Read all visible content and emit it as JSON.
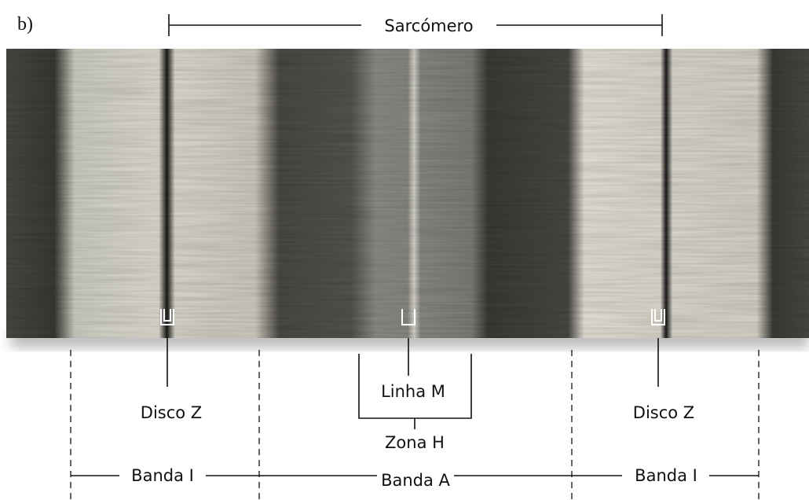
{
  "panel_label": "b)",
  "top_label": "Sarcómero",
  "structures": [
    {
      "label": "Disco Z"
    },
    {
      "label": "Linha M"
    },
    {
      "label": "Zona H"
    },
    {
      "label": "Disco Z"
    }
  ],
  "bands": [
    {
      "label": "Banda I"
    },
    {
      "label": "Banda A"
    },
    {
      "label": "Banda I"
    }
  ]
}
